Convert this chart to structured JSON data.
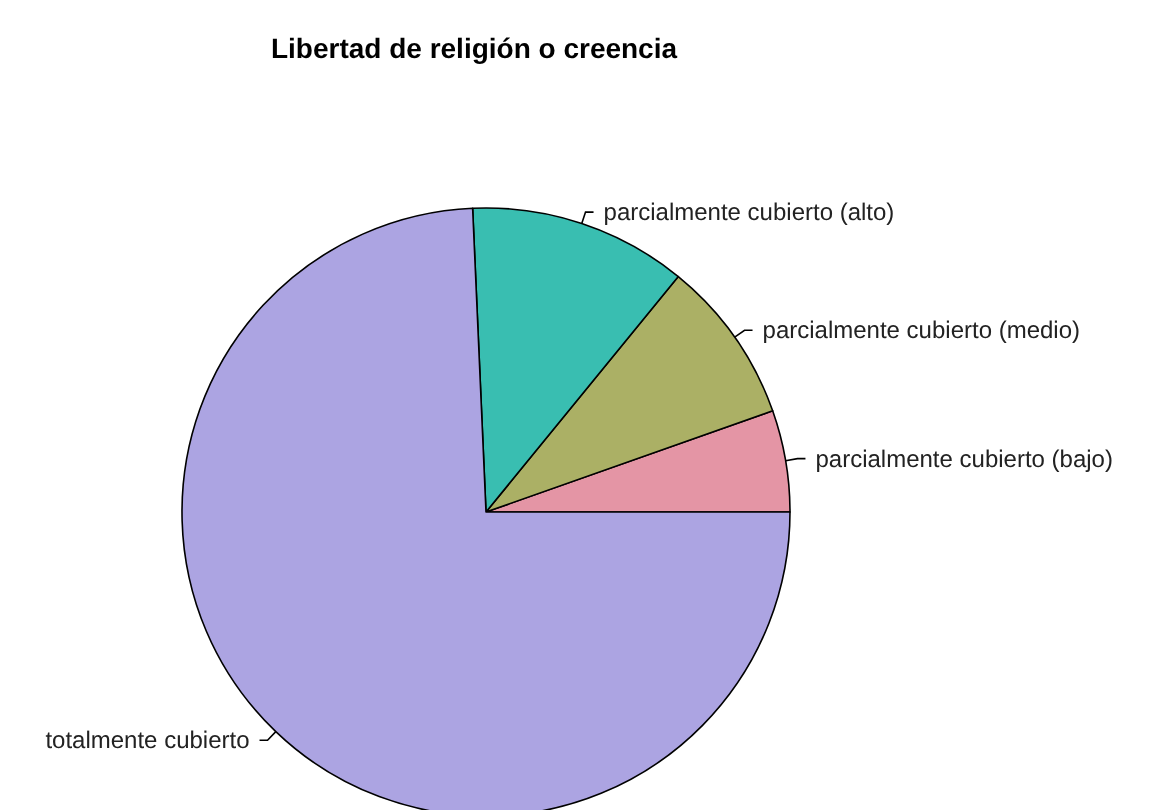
{
  "chart_data": {
    "type": "pie",
    "title": "Libertad de religión o creencia",
    "categories": [
      "parcialmente cubierto (bajo)",
      "parcialmente cubierto (medio)",
      "parcialmente cubierto (alto)",
      "totalmente cubierto"
    ],
    "values": [
      5.4,
      8.7,
      11.6,
      74.3
    ],
    "colors": [
      "#e495a5",
      "#abb065",
      "#39beb1",
      "#aca4e2"
    ]
  }
}
